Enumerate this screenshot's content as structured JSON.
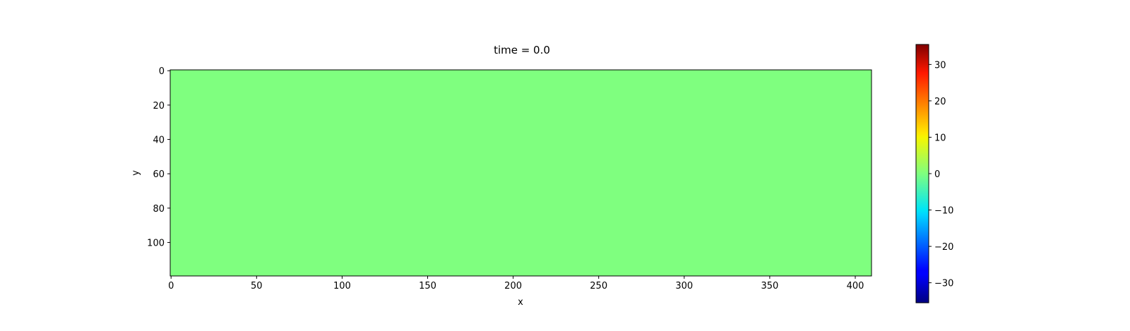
{
  "chart_data": {
    "type": "heatmap",
    "title": "time = 0.0",
    "xlabel": "x",
    "ylabel": "y",
    "xlim": [
      -0.5,
      409.5
    ],
    "ylim": [
      119.5,
      -0.5
    ],
    "x_ticks": [
      0,
      50,
      100,
      150,
      200,
      250,
      300,
      350,
      400
    ],
    "y_ticks": [
      0,
      20,
      40,
      60,
      80,
      100
    ],
    "grid": false,
    "values": "uniform field, all cells = 0.0",
    "field_value": 0.0,
    "colormap": "jet",
    "colorbar": {
      "vmin": -35.5,
      "vmax": 35.5,
      "ticks": [
        -30,
        -20,
        -10,
        0,
        10,
        20,
        30
      ],
      "tick_labels": [
        "−30",
        "−20",
        "−10",
        "0",
        "10",
        "20",
        "30"
      ]
    }
  },
  "colors": {
    "field": "#7fff7f",
    "axes": "#000000",
    "background": "#ffffff"
  }
}
